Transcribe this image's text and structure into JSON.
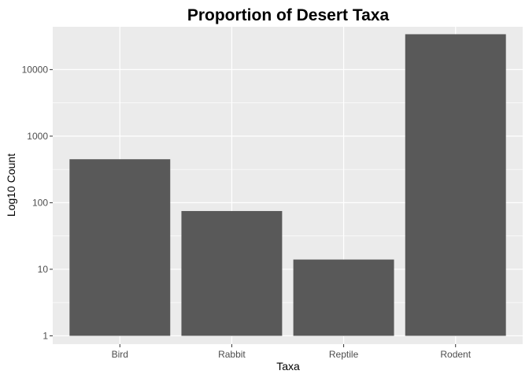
{
  "chart_data": {
    "type": "bar",
    "title": "Proportion of Desert Taxa",
    "xlabel": "Taxa",
    "ylabel": "Log10 Count",
    "categories": [
      "Bird",
      "Rabbit",
      "Reptile",
      "Rodent"
    ],
    "values": [
      450,
      75,
      14,
      34000
    ],
    "y_scale": "log10",
    "ylim": [
      0.75,
      44000
    ],
    "y_ticks": [
      1,
      10,
      100,
      1000,
      10000
    ],
    "y_tick_labels": [
      "1",
      "10",
      "100",
      "1000",
      "10000"
    ],
    "grid": true,
    "legend": "none",
    "colors": {
      "bar": "#595959",
      "panel_background": "#ebebeb",
      "gridline": "#ffffff"
    }
  }
}
